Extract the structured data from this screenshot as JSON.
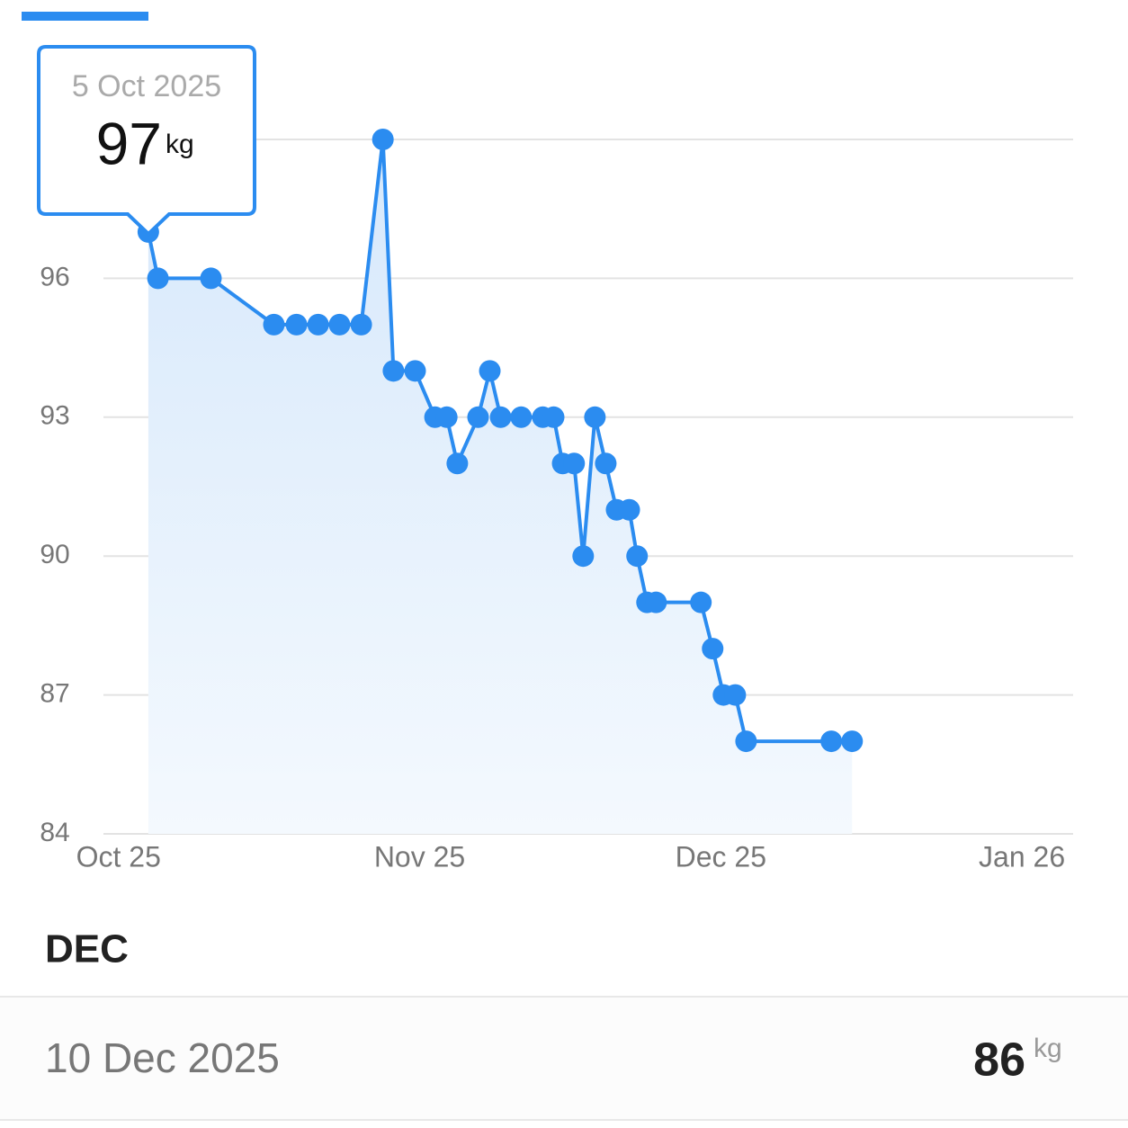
{
  "chart_data": {
    "type": "line",
    "color": "#2b8cf0",
    "x": [
      0.099,
      0.131,
      0.307,
      0.516,
      0.591,
      0.663,
      0.734,
      0.806,
      0.878,
      0.913,
      0.985,
      1.051,
      1.09,
      1.125,
      1.194,
      1.233,
      1.269,
      1.337,
      1.409,
      1.445,
      1.475,
      1.513,
      1.543,
      1.582,
      1.618,
      1.654,
      1.696,
      1.722,
      1.755,
      1.785,
      1.934,
      1.973,
      2.009,
      2.048,
      2.084,
      2.367,
      2.436
    ],
    "values": [
      97,
      96,
      96,
      95,
      95,
      95,
      95,
      95,
      99,
      94,
      94,
      93,
      93,
      92,
      93,
      94,
      93,
      93,
      93,
      93,
      92,
      92,
      90,
      93,
      92,
      91,
      91,
      90,
      89,
      89,
      89,
      88,
      87,
      87,
      86,
      86,
      86
    ],
    "xlim": [
      -0.05,
      3.17
    ],
    "xticks": [
      {
        "value": 0,
        "label": "Oct 25"
      },
      {
        "value": 1,
        "label": "Nov 25"
      },
      {
        "value": 2,
        "label": "Dec 25"
      },
      {
        "value": 3,
        "label": "Jan 26"
      }
    ],
    "ylim": [
      84,
      99
    ],
    "yticks": [
      84,
      87,
      90,
      93,
      96
    ],
    "grid": true,
    "tooltip": {
      "date": "5 Oct 2025",
      "value": 97,
      "unit": "kg"
    }
  },
  "section": {
    "title": "DEC",
    "entries": [
      {
        "date": "10 Dec 2025",
        "value": 86,
        "unit": "kg"
      }
    ]
  }
}
